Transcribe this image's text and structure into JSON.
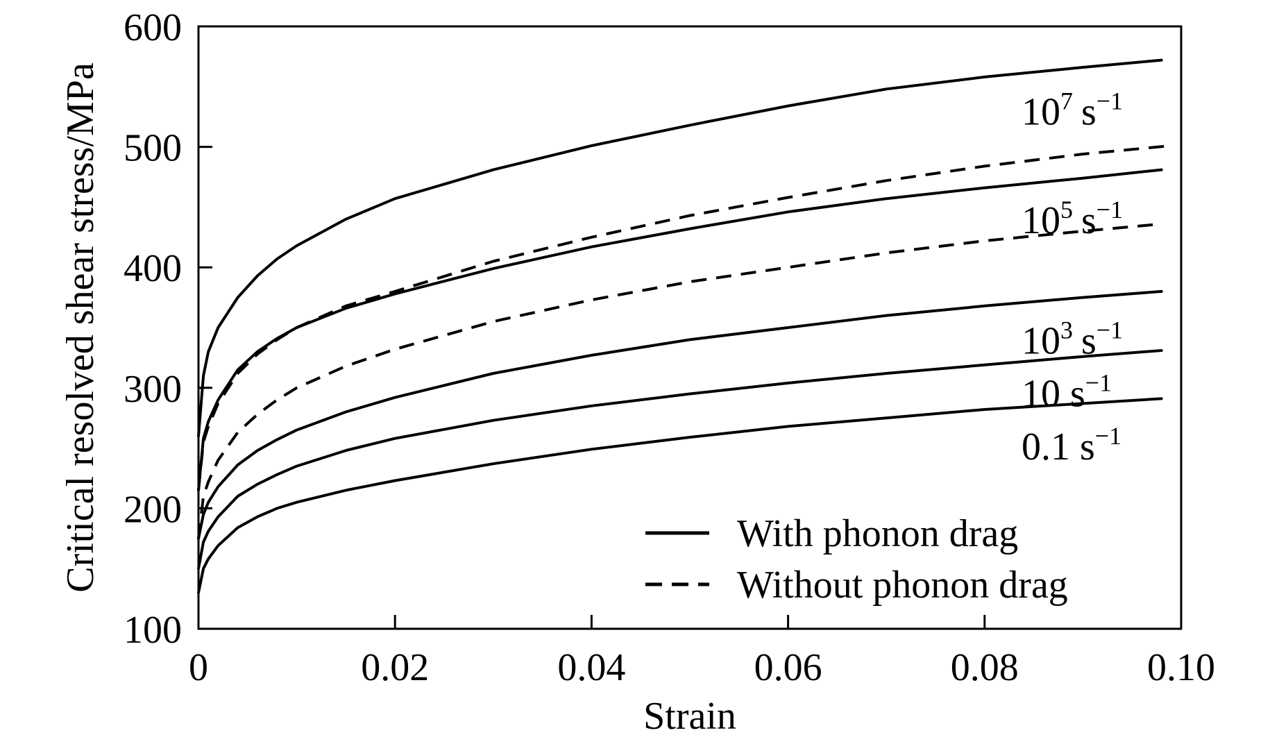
{
  "chart_data": {
    "type": "line",
    "title": "",
    "xlabel": "Strain",
    "ylabel": "Critical resolved shear stress/MPa",
    "xlim": [
      0,
      0.1
    ],
    "ylim": [
      100,
      600
    ],
    "xticks": [
      0,
      0.02,
      0.04,
      0.06,
      0.08,
      0.1
    ],
    "xtick_labels": [
      "0",
      "0.02",
      "0.04",
      "0.06",
      "0.08",
      "0.10"
    ],
    "yticks": [
      100,
      200,
      300,
      400,
      500,
      600
    ],
    "ytick_labels": [
      "100",
      "200",
      "300",
      "400",
      "500",
      "600"
    ],
    "grid": false,
    "legend": {
      "placement": "bottom-right",
      "entries": [
        {
          "label": "With phonon drag",
          "style": "solid"
        },
        {
          "label": "Without phonon drag",
          "style": "dashed"
        }
      ]
    },
    "rate_labels": [
      {
        "base": "10",
        "exp": "7",
        "unit": "s",
        "unit_exp": "−1",
        "near_y": 530
      },
      {
        "base": "10",
        "exp": "5",
        "unit": "s",
        "unit_exp": "−1",
        "near_y": 440
      },
      {
        "base": "10",
        "exp": "3",
        "unit": "s",
        "unit_exp": "−1",
        "near_y": 340
      },
      {
        "base": "10",
        "exp": "",
        "unit": "s",
        "unit_exp": "−1",
        "near_y": 296
      },
      {
        "base": "0.1",
        "exp": "",
        "unit": "s",
        "unit_exp": "−1",
        "near_y": 252
      }
    ],
    "series": [
      {
        "rate": "10^7",
        "style": "solid",
        "x": [
          0,
          0.0005,
          0.001,
          0.002,
          0.004,
          0.006,
          0.008,
          0.01,
          0.015,
          0.02,
          0.03,
          0.04,
          0.05,
          0.06,
          0.07,
          0.08,
          0.09,
          0.098
        ],
        "y": [
          260,
          310,
          330,
          350,
          375,
          393,
          407,
          418,
          440,
          457,
          481,
          501,
          518,
          534,
          548,
          558,
          566,
          572
        ]
      },
      {
        "rate": "10^7",
        "style": "dashed",
        "x": [
          0,
          0.0005,
          0.001,
          0.002,
          0.004,
          0.006,
          0.008,
          0.01,
          0.015,
          0.02,
          0.03,
          0.04,
          0.05,
          0.06,
          0.07,
          0.08,
          0.09,
          0.099
        ],
        "y": [
          215,
          255,
          268,
          287,
          312,
          328,
          340,
          350,
          368,
          380,
          405,
          425,
          443,
          458,
          472,
          484,
          494,
          501
        ]
      },
      {
        "rate": "10^5",
        "style": "solid",
        "x": [
          0,
          0.0005,
          0.001,
          0.002,
          0.004,
          0.006,
          0.008,
          0.01,
          0.015,
          0.02,
          0.03,
          0.04,
          0.05,
          0.06,
          0.07,
          0.08,
          0.09,
          0.098
        ],
        "y": [
          215,
          258,
          272,
          290,
          315,
          330,
          341,
          350,
          366,
          378,
          399,
          417,
          432,
          446,
          457,
          466,
          474,
          481
        ]
      },
      {
        "rate": "10^5",
        "style": "dashed",
        "x": [
          0,
          0.0005,
          0.001,
          0.002,
          0.004,
          0.006,
          0.008,
          0.01,
          0.015,
          0.02,
          0.03,
          0.04,
          0.05,
          0.06,
          0.07,
          0.08,
          0.09,
          0.098
        ],
        "y": [
          175,
          210,
          222,
          240,
          263,
          278,
          290,
          300,
          318,
          332,
          355,
          373,
          388,
          400,
          412,
          422,
          430,
          436
        ]
      },
      {
        "rate": "10^3",
        "style": "solid",
        "x": [
          0,
          0.0005,
          0.001,
          0.002,
          0.004,
          0.006,
          0.008,
          0.01,
          0.015,
          0.02,
          0.03,
          0.04,
          0.05,
          0.06,
          0.07,
          0.08,
          0.09,
          0.098
        ],
        "y": [
          175,
          195,
          205,
          218,
          236,
          248,
          257,
          265,
          280,
          292,
          312,
          327,
          340,
          350,
          360,
          368,
          375,
          380
        ]
      },
      {
        "rate": "10",
        "style": "solid",
        "x": [
          0,
          0.0005,
          0.001,
          0.002,
          0.004,
          0.006,
          0.008,
          0.01,
          0.015,
          0.02,
          0.03,
          0.04,
          0.05,
          0.06,
          0.07,
          0.08,
          0.09,
          0.098
        ],
        "y": [
          150,
          172,
          181,
          193,
          210,
          220,
          228,
          235,
          248,
          258,
          273,
          285,
          295,
          304,
          312,
          319,
          326,
          331
        ]
      },
      {
        "rate": "0.1",
        "style": "solid",
        "x": [
          0,
          0.0005,
          0.001,
          0.002,
          0.004,
          0.006,
          0.008,
          0.01,
          0.015,
          0.02,
          0.03,
          0.04,
          0.05,
          0.06,
          0.07,
          0.08,
          0.09,
          0.098
        ],
        "y": [
          130,
          150,
          158,
          169,
          184,
          193,
          200,
          205,
          215,
          223,
          237,
          249,
          259,
          268,
          275,
          282,
          287,
          291
        ]
      }
    ]
  }
}
